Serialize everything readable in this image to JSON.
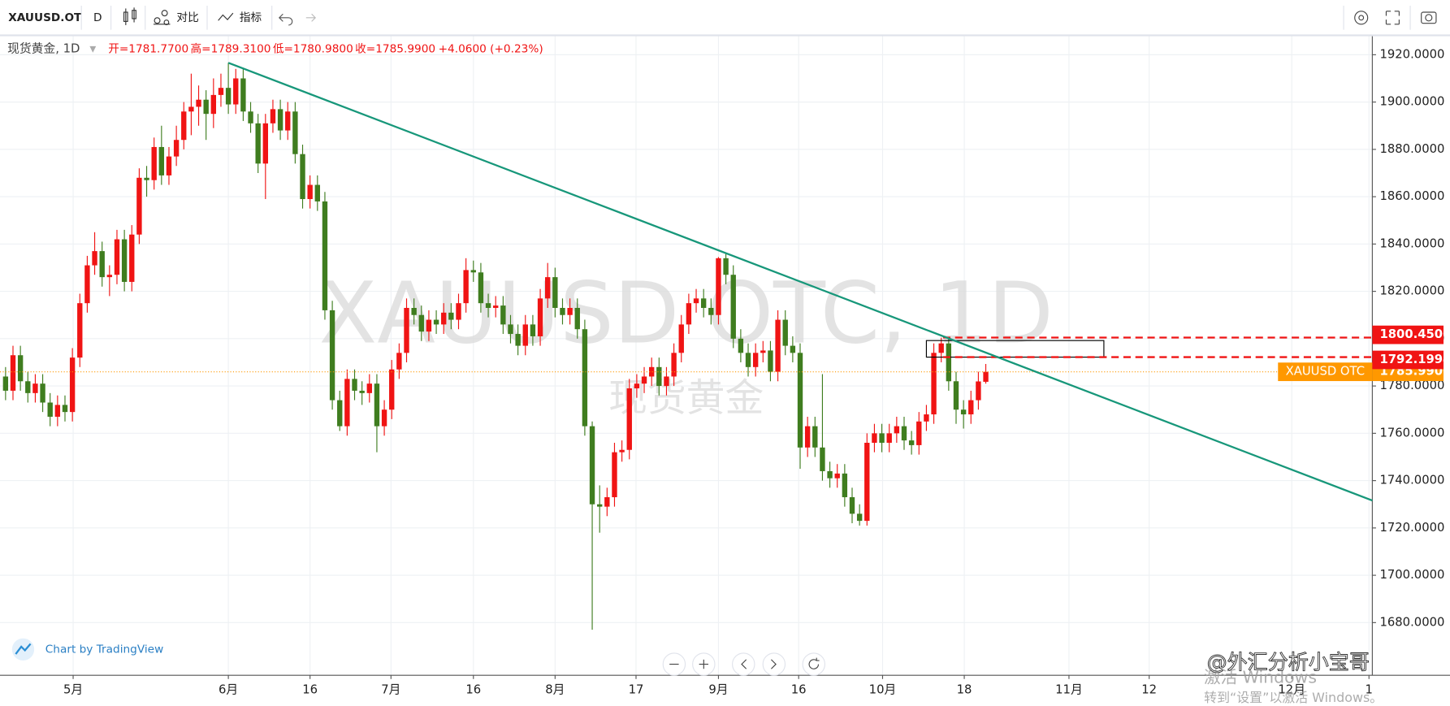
{
  "toolbar": {
    "symbol": "XAUUSD.OT",
    "interval": "D",
    "compare": "对比",
    "indicators": "指标"
  },
  "legend": {
    "symbol": "现货黄金, 1D",
    "items": [
      "开=1781.7700",
      "高=1789.3100",
      "低=1780.9800",
      "收=1785.9900"
    ],
    "change": "+4.0600 (+0.23%)"
  },
  "watermark": {
    "title": "XAUUSD OTC, 1D",
    "subtitle": "现货黄金"
  },
  "footer": {
    "credit": "Chart by TradingView",
    "windows": "激活 Windows",
    "windows_hint": "转到“设置”以激活 Windows。",
    "author": "@外汇分析小宝哥"
  },
  "chart_data": {
    "type": "candlestick",
    "up_color": "#f01414",
    "down_color": "#3f7d1f",
    "grid": true,
    "x": [
      0,
      1,
      2,
      3,
      4,
      5,
      6,
      7,
      8,
      9,
      10,
      11,
      12,
      13,
      14,
      15,
      16,
      17,
      18,
      19,
      20,
      21,
      22,
      23,
      24,
      25,
      26,
      27,
      28,
      29,
      30,
      31,
      32,
      33,
      34,
      35,
      36,
      37,
      38,
      39,
      40,
      41,
      42,
      43,
      44,
      45,
      46,
      47,
      48,
      49,
      50,
      51,
      52,
      53,
      54,
      55,
      56,
      57,
      58,
      59,
      60,
      61,
      62,
      63,
      64,
      65,
      66,
      67,
      68,
      69,
      70,
      71,
      72,
      73,
      74,
      75,
      76,
      77,
      78,
      79,
      80,
      81,
      82,
      83,
      84,
      85,
      86,
      87,
      88,
      89,
      90,
      91,
      92,
      93,
      94,
      95,
      96,
      97,
      98,
      99,
      100,
      101,
      102,
      103,
      104,
      105,
      106,
      107,
      108,
      109,
      110,
      111,
      112,
      113,
      114,
      115,
      116,
      117,
      118,
      119,
      120,
      121,
      122,
      123,
      124,
      125,
      126,
      127,
      128,
      129,
      130,
      131,
      132
    ],
    "open": [
      1784,
      1778,
      1793,
      1782,
      1777,
      1781,
      1773,
      1767,
      1772,
      1769,
      1792,
      1815,
      1831,
      1837,
      1826,
      1827,
      1842,
      1824,
      1844,
      1868,
      1867,
      1881,
      1869,
      1877,
      1884,
      1896,
      1898,
      1901,
      1895,
      1903,
      1906,
      1899,
      1910,
      1896,
      1891,
      1874,
      1891,
      1897,
      1888,
      1896,
      1878,
      1859,
      1865,
      1858,
      1812,
      1774,
      1763,
      1783,
      1778,
      1777,
      1781,
      1763,
      1770,
      1787,
      1794,
      1813,
      1810,
      1803,
      1808,
      1806,
      1811,
      1808,
      1815,
      1829,
      1828,
      1815,
      1813,
      1814,
      1806,
      1802,
      1797,
      1806,
      1801,
      1817,
      1826,
      1813,
      1810,
      1813,
      1804,
      1763,
      1730,
      1729,
      1733,
      1752,
      1753,
      1779,
      1781,
      1784,
      1788,
      1780,
      1784,
      1794,
      1806,
      1815,
      1817,
      1813,
      1810,
      1834,
      1827,
      1800,
      1794,
      1788,
      1794,
      1795,
      1786,
      1808,
      1797,
      1794,
      1754,
      1763,
      1754,
      1744,
      1741,
      1743,
      1733,
      1726,
      1723,
      1756,
      1760,
      1756,
      1760,
      1763,
      1757,
      1755,
      1765,
      1768,
      1794,
      1798,
      1782,
      1770,
      1768,
      1774,
      1781.77
    ],
    "high": [
      1788,
      1797,
      1797,
      1786,
      1785,
      1785,
      1777,
      1776,
      1776,
      1796,
      1819,
      1835,
      1845,
      1841,
      1831,
      1846,
      1846,
      1848,
      1872,
      1873,
      1885,
      1890,
      1881,
      1890,
      1900,
      1912,
      1907,
      1905,
      1910,
      1912,
      1916.6,
      1914,
      1914,
      1900,
      1895,
      1895,
      1901,
      1901,
      1900,
      1900,
      1882,
      1869,
      1869,
      1862,
      1816,
      1778,
      1787,
      1787,
      1782,
      1785,
      1785,
      1774,
      1791,
      1798,
      1817,
      1817,
      1814,
      1812,
      1812,
      1815,
      1815,
      1819,
      1834,
      1833,
      1832,
      1819,
      1818,
      1818,
      1810,
      1806,
      1810,
      1810,
      1821,
      1832,
      1830,
      1817,
      1817,
      1817,
      1808,
      1765,
      1738,
      1737,
      1756,
      1757,
      1783,
      1785,
      1788,
      1792,
      1792,
      1788,
      1798,
      1810,
      1819,
      1821,
      1821,
      1817,
      1834.5,
      1836,
      1831,
      1804,
      1798,
      1798,
      1799,
      1799,
      1812,
      1812,
      1801,
      1798,
      1767,
      1767,
      1785,
      1748,
      1747,
      1747,
      1737,
      1730,
      1760,
      1764,
      1764,
      1764,
      1767,
      1767,
      1761,
      1769,
      1772,
      1798,
      1800.4,
      1800,
      1786,
      1774,
      1778,
      1786,
      1789.31
    ],
    "low": [
      1774,
      1774,
      1778,
      1773,
      1773,
      1769,
      1763,
      1763,
      1765,
      1765,
      1788,
      1811,
      1827,
      1822,
      1818,
      1823,
      1820,
      1820,
      1840,
      1860,
      1863,
      1865,
      1865,
      1873,
      1880,
      1886,
      1890,
      1884,
      1889,
      1898,
      1895,
      1895,
      1892,
      1887,
      1870,
      1859,
      1887,
      1884,
      1884,
      1874,
      1855,
      1855,
      1854,
      1808,
      1770,
      1761,
      1759,
      1774,
      1772,
      1773,
      1752,
      1759,
      1766,
      1783,
      1790,
      1806,
      1799,
      1799,
      1802,
      1802,
      1804,
      1804,
      1811,
      1824,
      1811,
      1809,
      1809,
      1802,
      1798,
      1793,
      1793,
      1797,
      1797,
      1813,
      1809,
      1806,
      1806,
      1800,
      1759,
      1677,
      1718,
      1725,
      1729,
      1748,
      1749,
      1775,
      1777,
      1780,
      1776,
      1776,
      1780,
      1790,
      1802,
      1811,
      1809,
      1806,
      1806,
      1823,
      1796,
      1790,
      1784,
      1784,
      1790,
      1782,
      1782,
      1793,
      1790,
      1745,
      1750,
      1750,
      1740,
      1737,
      1737,
      1729,
      1722,
      1721,
      1721,
      1752,
      1752,
      1752,
      1756,
      1753,
      1751,
      1751,
      1761,
      1764,
      1790,
      1778,
      1764,
      1762,
      1764,
      1770,
      1780.98
    ],
    "close": [
      1778,
      1793,
      1782,
      1777,
      1781,
      1773,
      1767,
      1772,
      1769,
      1792,
      1815,
      1831,
      1837,
      1826,
      1827,
      1842,
      1824,
      1844,
      1868,
      1867,
      1881,
      1869,
      1877,
      1884,
      1896,
      1898,
      1901,
      1895,
      1903,
      1906,
      1899,
      1910,
      1896,
      1891,
      1874,
      1891,
      1897,
      1888,
      1896,
      1878,
      1859,
      1865,
      1858,
      1812,
      1774,
      1763,
      1783,
      1778,
      1777,
      1781,
      1763,
      1770,
      1787,
      1794,
      1813,
      1810,
      1803,
      1808,
      1806,
      1811,
      1808,
      1815,
      1829,
      1828,
      1815,
      1813,
      1814,
      1806,
      1802,
      1797,
      1806,
      1801,
      1817,
      1826,
      1813,
      1810,
      1813,
      1804,
      1763,
      1730,
      1729,
      1733,
      1752,
      1753,
      1779,
      1781,
      1784,
      1788,
      1780,
      1784,
      1794,
      1806,
      1815,
      1817,
      1813,
      1810,
      1834,
      1827,
      1800,
      1794,
      1788,
      1794,
      1795,
      1786,
      1808,
      1797,
      1794,
      1754,
      1763,
      1754,
      1744,
      1741,
      1743,
      1733,
      1726,
      1723,
      1756,
      1760,
      1756,
      1760,
      1763,
      1757,
      1755,
      1765,
      1768,
      1794,
      1798,
      1782,
      1770,
      1768,
      1774,
      1781.93,
      1785.99
    ],
    "xlim": [
      -0.75,
      184.05
    ],
    "xticks": [
      {
        "value": 9.1,
        "label": "5月"
      },
      {
        "value": 30,
        "label": "6月"
      },
      {
        "value": 41,
        "label": "16"
      },
      {
        "value": 51.9,
        "label": "7月"
      },
      {
        "value": 63,
        "label": "16"
      },
      {
        "value": 74,
        "label": "8月"
      },
      {
        "value": 84.9,
        "label": "17"
      },
      {
        "value": 96,
        "label": "9月"
      },
      {
        "value": 106.8,
        "label": "16"
      },
      {
        "value": 118.1,
        "label": "10月"
      },
      {
        "value": 129.1,
        "label": "18"
      },
      {
        "value": 143.2,
        "label": "11月"
      },
      {
        "value": 154,
        "label": "12"
      },
      {
        "value": 173.2,
        "label": "12月"
      },
      {
        "value": 183.6,
        "label": "1"
      }
    ],
    "ylim": [
      1657.72,
      1928.21
    ],
    "yticks": [
      {
        "value": 1680,
        "label": "1680.0000"
      },
      {
        "value": 1700,
        "label": "1700.0000"
      },
      {
        "value": 1720,
        "label": "1720.0000"
      },
      {
        "value": 1740,
        "label": "1740.0000"
      },
      {
        "value": 1760,
        "label": "1760.0000"
      },
      {
        "value": 1780,
        "label": "1780.0000"
      },
      {
        "value": 1800,
        "label": "1800.0000"
      },
      {
        "value": 1820,
        "label": "1820.0000"
      },
      {
        "value": 1840,
        "label": "1840.0000"
      },
      {
        "value": 1860,
        "label": "1860.0000"
      },
      {
        "value": 1880,
        "label": "1880.0000"
      },
      {
        "value": 1900,
        "label": "1900.0000"
      },
      {
        "value": 1920,
        "label": "1920.0000"
      }
    ],
    "trendline": {
      "x": [
        30,
        184.05
      ],
      "y": [
        1916.6,
        1731.6
      ],
      "color": "#17977a"
    },
    "box": {
      "x": [
        124.0,
        147.9
      ],
      "y": [
        1799.2,
        1792.2
      ]
    },
    "levels": [
      {
        "value": 1800.45,
        "label": "1800.4500"
      },
      {
        "value": 1792.1994,
        "label": "1792.1994"
      }
    ],
    "level_color": "#f01414",
    "last_price": {
      "name": "XAUUSD OTC",
      "value": 1785.99,
      "label": "1785.9900",
      "color": "#ff9800"
    }
  }
}
